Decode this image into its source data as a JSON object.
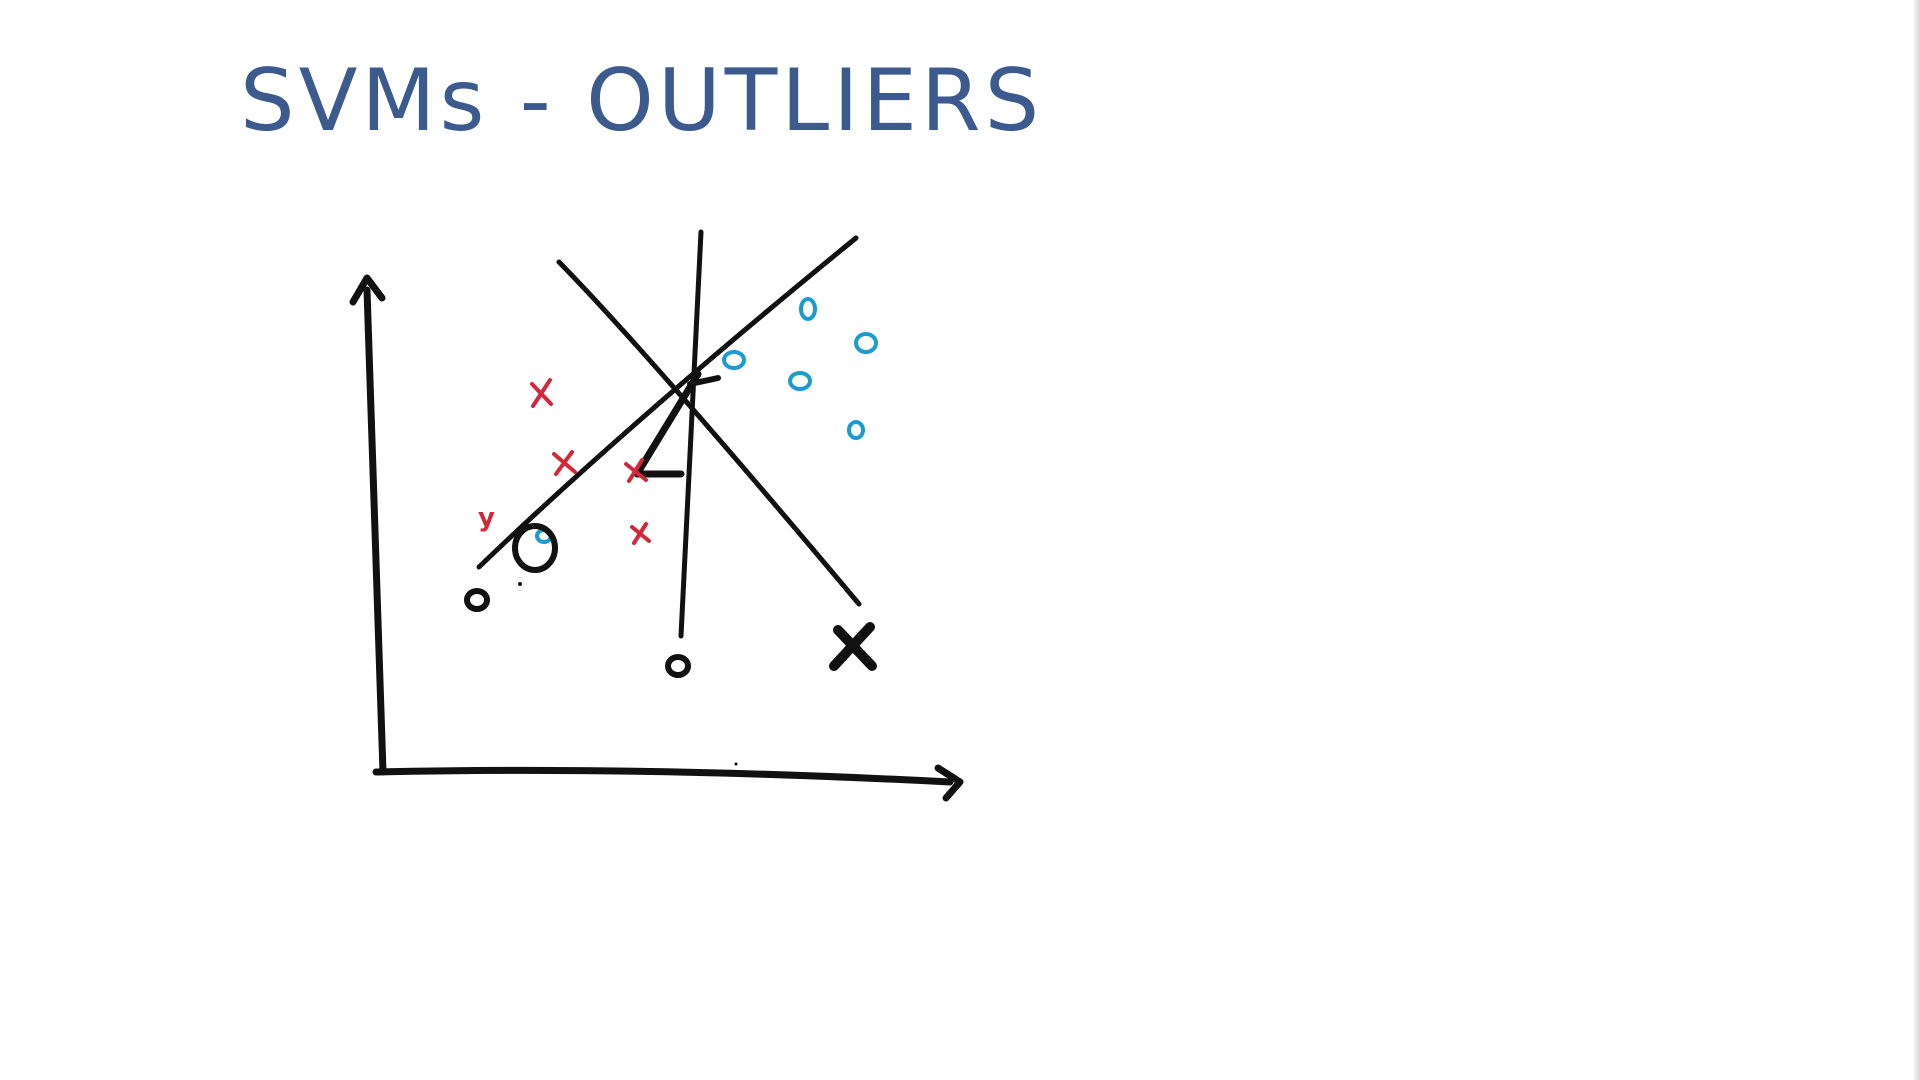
{
  "title": "SVMs - OUTLIERS",
  "label_y": "y",
  "colors": {
    "title": "#3d5a8f",
    "ink": "#111111",
    "class_x": "#d6263a",
    "class_o": "#1a9bd1",
    "background": "#ffffff"
  }
}
